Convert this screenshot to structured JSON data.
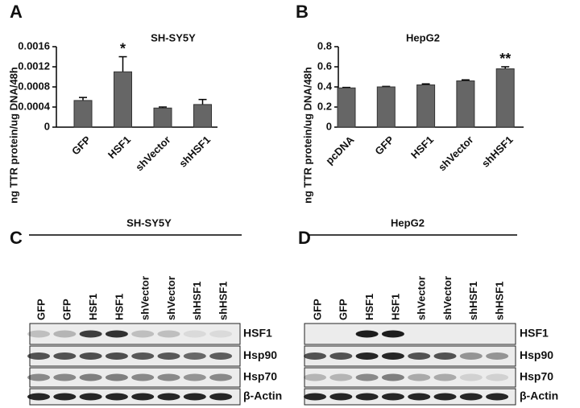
{
  "chart_data": [
    {
      "type": "bar",
      "panel": "A",
      "title": "SH-SY5Y",
      "y_label": "ng TTR protein/ug DNA/48h",
      "categories": [
        "GFP",
        "HSF1",
        "shVector",
        "shHSF1"
      ],
      "values": [
        0.00053,
        0.0011,
        0.00038,
        0.00045
      ],
      "errors": [
        6e-05,
        0.0003,
        2e-05,
        0.0001
      ],
      "significance": [
        null,
        "*",
        null,
        null
      ],
      "color": "#666666",
      "ylim": [
        0,
        0.0016
      ],
      "yticks": [
        0,
        0.0004,
        0.0008,
        0.0012,
        0.0016
      ]
    },
    {
      "type": "bar",
      "panel": "B",
      "title": "HepG2",
      "y_label": "ng TTR protein/ug DNA/48h",
      "categories": [
        "pcDNA",
        "GFP",
        "HSF1",
        "shVector",
        "shHSF1"
      ],
      "values": [
        0.39,
        0.4,
        0.42,
        0.46,
        0.58
      ],
      "errors": [
        0.005,
        0.005,
        0.01,
        0.01,
        0.02
      ],
      "significance": [
        null,
        null,
        null,
        null,
        "**"
      ],
      "color": "#666666",
      "ylim": [
        0,
        0.8
      ],
      "yticks": [
        0,
        0.2,
        0.4,
        0.6,
        0.8
      ]
    }
  ],
  "blots": [
    {
      "panel": "C",
      "title": "SH-SY5Y",
      "lanes": [
        "GFP",
        "GFP",
        "HSF1",
        "HSF1",
        "shVector",
        "shVector",
        "shHSF1",
        "shHSF1"
      ],
      "bands": [
        "HSF1",
        "Hsp90",
        "Hsp70",
        "β-Actin"
      ]
    },
    {
      "panel": "D",
      "title": "HepG2",
      "lanes": [
        "GFP",
        "GFP",
        "HSF1",
        "HSF1",
        "shVector",
        "shVector",
        "shHSF1",
        "shHSF1"
      ],
      "bands": [
        "HSF1",
        "Hsp90",
        "Hsp70",
        "β-Actin"
      ]
    }
  ]
}
